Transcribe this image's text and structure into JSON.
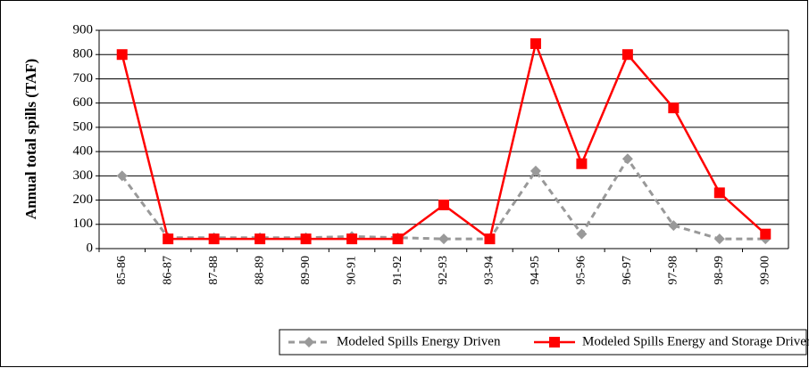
{
  "chart_data": {
    "type": "line",
    "y_label": "Annual total spills (TAF)",
    "categories": [
      "85-86",
      "86-87",
      "87-88",
      "88-89",
      "89-90",
      "90-91",
      "91-92",
      "92-93",
      "93-94",
      "94-95",
      "95-96",
      "96-97",
      "97-98",
      "98-99",
      "99-00"
    ],
    "series": [
      {
        "name": "Modeled Spills Energy Driven",
        "color": "#999999",
        "marker": "diamond",
        "dashed": true,
        "values": [
          300,
          45,
          45,
          45,
          45,
          50,
          45,
          40,
          40,
          320,
          60,
          370,
          95,
          40,
          40
        ]
      },
      {
        "name": "Modeled Spills Energy and Storage Driven",
        "color": "#ff0000",
        "marker": "square",
        "dashed": false,
        "values": [
          800,
          40,
          40,
          40,
          40,
          40,
          40,
          180,
          40,
          845,
          350,
          800,
          580,
          230,
          60
        ]
      }
    ],
    "ylim": [
      0,
      900
    ],
    "yticks": [
      0,
      100,
      200,
      300,
      400,
      500,
      600,
      700,
      800,
      900
    ],
    "grid": true,
    "legend": "bottom"
  }
}
